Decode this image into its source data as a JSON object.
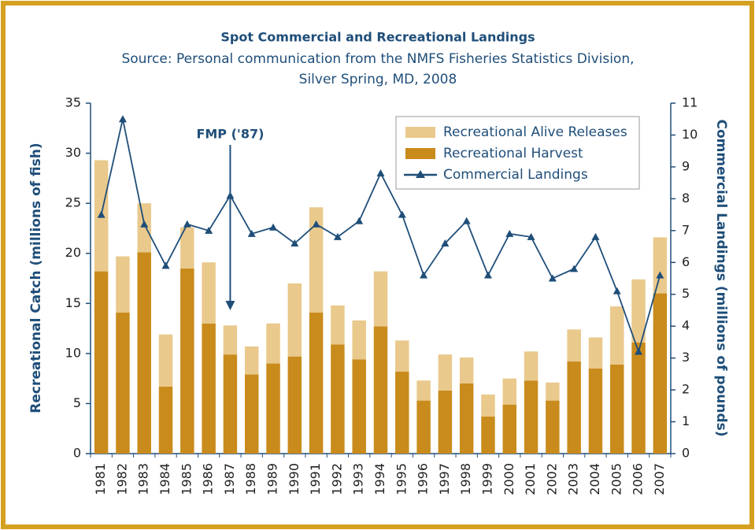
{
  "chart_data": {
    "type": "bar",
    "stacked": true,
    "title": "Spot Commercial and Recreational Landings",
    "subtitle": [
      "Source: Personal communication from the NMFS Fisheries Statistics Division,",
      "Silver Spring, MD, 2008"
    ],
    "annotation": "FMP ('87)",
    "ylabel": "Recreational Catch (millions of fish)",
    "y2label": "Commercial Landings (millions of pounds)",
    "categories": [
      "1981",
      "1982",
      "1983",
      "1984",
      "1985",
      "1986",
      "1987",
      "1988",
      "1989",
      "1990",
      "1991",
      "1992",
      "1993",
      "1994",
      "1995",
      "1996",
      "1997",
      "1998",
      "1999",
      "2000",
      "2001",
      "2002",
      "2003",
      "2004",
      "2005",
      "2006",
      "2007"
    ],
    "series": [
      {
        "name": "Recreational Harvest",
        "color": "#c98b1c",
        "type": "bar",
        "values": [
          18.2,
          14.1,
          20.1,
          6.7,
          18.5,
          13.0,
          9.9,
          7.9,
          9.0,
          9.7,
          14.1,
          10.9,
          9.4,
          12.7,
          8.2,
          5.3,
          6.3,
          7.0,
          3.7,
          4.9,
          7.3,
          5.3,
          9.2,
          8.5,
          8.9,
          11.1,
          16.0
        ]
      },
      {
        "name": "Recreational Alive Releases",
        "color": "#e9c98c",
        "type": "bar",
        "values": [
          11.1,
          5.6,
          4.9,
          5.2,
          4.1,
          6.1,
          2.9,
          2.8,
          4.0,
          7.3,
          10.5,
          3.9,
          3.9,
          5.5,
          3.1,
          2.0,
          3.6,
          2.6,
          2.2,
          2.6,
          2.9,
          1.8,
          3.2,
          3.1,
          5.8,
          6.3,
          5.6
        ]
      },
      {
        "name": "Commercial Landings",
        "color": "#1f4e79",
        "type": "line",
        "axis": "y2",
        "values": [
          7.5,
          10.5,
          7.2,
          5.9,
          7.2,
          7.0,
          8.1,
          6.9,
          7.1,
          6.6,
          7.2,
          6.8,
          7.3,
          8.8,
          7.5,
          5.6,
          6.6,
          7.3,
          5.6,
          6.9,
          6.8,
          5.5,
          5.8,
          6.8,
          5.1,
          3.2,
          5.6
        ]
      }
    ],
    "legend_order": [
      1,
      0,
      2
    ],
    "legend": "upper right",
    "ylim": [
      0,
      35
    ],
    "yticks": [
      0,
      5,
      10,
      15,
      20,
      25,
      30,
      35
    ],
    "y2lim": [
      0,
      11
    ],
    "y2ticks": [
      0,
      1,
      2,
      3,
      4,
      5,
      6,
      7,
      8,
      9,
      10,
      11
    ]
  }
}
